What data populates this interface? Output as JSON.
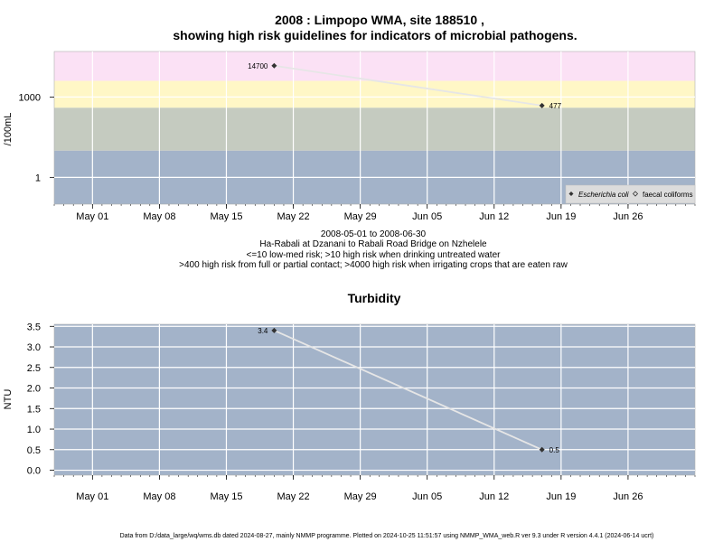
{
  "colors": {
    "panel_bg": "#a3b3c9",
    "band_low": "#a3b3c9",
    "band_med": "#c5cbc0",
    "band_high": "#fff7c6",
    "band_veryhigh": "#fbe1f5",
    "grid": "#ffffff",
    "series_line": "#e6e6e6",
    "marker": "#333333"
  },
  "chart_data": [
    {
      "type": "line",
      "title": "2008 : Limpopo WMA, site 188510 ,",
      "subtitle": "showing high risk guidelines for indicators of microbial pathogens.",
      "ylabel": "/100mL",
      "xlabel": "",
      "y_scale": "log10",
      "ylim": [
        0.1,
        50000
      ],
      "yticks": [
        {
          "value": 1,
          "label": "1"
        },
        {
          "value": 1000,
          "label": "1000"
        }
      ],
      "xlim": [
        "2008-04-27",
        "2008-07-03"
      ],
      "xticks": [
        {
          "date": "2008-05-01",
          "label": "May 01"
        },
        {
          "date": "2008-05-08",
          "label": "May 08"
        },
        {
          "date": "2008-05-15",
          "label": "May 15"
        },
        {
          "date": "2008-05-22",
          "label": "May 22"
        },
        {
          "date": "2008-05-29",
          "label": "May 29"
        },
        {
          "date": "2008-06-05",
          "label": "Jun 05"
        },
        {
          "date": "2008-06-12",
          "label": "Jun 12"
        },
        {
          "date": "2008-06-19",
          "label": "Jun 19"
        },
        {
          "date": "2008-06-26",
          "label": "Jun 26"
        }
      ],
      "risk_bands": [
        {
          "from": 0.1,
          "to": 10,
          "color": "#a3b3c9"
        },
        {
          "from": 10,
          "to": 400,
          "color": "#c5cbc0"
        },
        {
          "from": 400,
          "to": 4000,
          "color": "#fff7c6"
        },
        {
          "from": 4000,
          "to": 50000,
          "color": "#fbe1f5"
        }
      ],
      "series": [
        {
          "name": "Escherichia coli",
          "marker": "filled-diamond",
          "points": [
            {
              "x": "2008-05-20",
              "y": 14700,
              "label": "14700"
            },
            {
              "x": "2008-06-17",
              "y": 477,
              "label": "477"
            }
          ]
        }
      ],
      "legend": {
        "position": "bottom-right",
        "entries": [
          {
            "label": "Escherichia coli",
            "marker": "filled-diamond",
            "italic": true
          },
          {
            "label": "faecal coliforms",
            "marker": "open-diamond",
            "italic": false
          }
        ]
      },
      "captions": [
        "2008-05-01 to 2008-06-30",
        "Ha-Rabali at Dzanani to Rabali Road Bridge on Nzhelele",
        "<=10 low-med risk; >10 high risk when drinking untreated water",
        ">400 high risk from full or partial contact; >4000 high risk when irrigating crops that are eaten raw"
      ]
    },
    {
      "type": "line",
      "title": "Turbidity",
      "ylabel": "NTU",
      "xlabel": "",
      "y_scale": "linear",
      "ylim": [
        -0.12,
        3.55
      ],
      "yticks": [
        {
          "value": 0.0,
          "label": "0.0"
        },
        {
          "value": 0.5,
          "label": "0.5"
        },
        {
          "value": 1.0,
          "label": "1.0"
        },
        {
          "value": 1.5,
          "label": "1.5"
        },
        {
          "value": 2.0,
          "label": "2.0"
        },
        {
          "value": 2.5,
          "label": "2.5"
        },
        {
          "value": 3.0,
          "label": "3.0"
        },
        {
          "value": 3.5,
          "label": "3.5"
        }
      ],
      "xlim": [
        "2008-04-27",
        "2008-07-03"
      ],
      "xticks": [
        {
          "date": "2008-05-01",
          "label": "May 01"
        },
        {
          "date": "2008-05-08",
          "label": "May 08"
        },
        {
          "date": "2008-05-15",
          "label": "May 15"
        },
        {
          "date": "2008-05-22",
          "label": "May 22"
        },
        {
          "date": "2008-05-29",
          "label": "May 29"
        },
        {
          "date": "2008-06-05",
          "label": "Jun 05"
        },
        {
          "date": "2008-06-12",
          "label": "Jun 12"
        },
        {
          "date": "2008-06-19",
          "label": "Jun 19"
        },
        {
          "date": "2008-06-26",
          "label": "Jun 26"
        }
      ],
      "series": [
        {
          "name": "",
          "marker": "filled-diamond",
          "points": [
            {
              "x": "2008-05-20",
              "y": 3.4,
              "label": "3.4"
            },
            {
              "x": "2008-06-17",
              "y": 0.5,
              "label": "0.5"
            }
          ]
        }
      ]
    }
  ],
  "footer": "Data from D:/data_large/wq/wms.db dated 2024-08-27, mainly NMMP programme. Plotted on 2024-10-25 11:51:57 using NMMP_WMA_web.R ver 9.3 under R version 4.4.1 (2024-06-14 ucrt)"
}
